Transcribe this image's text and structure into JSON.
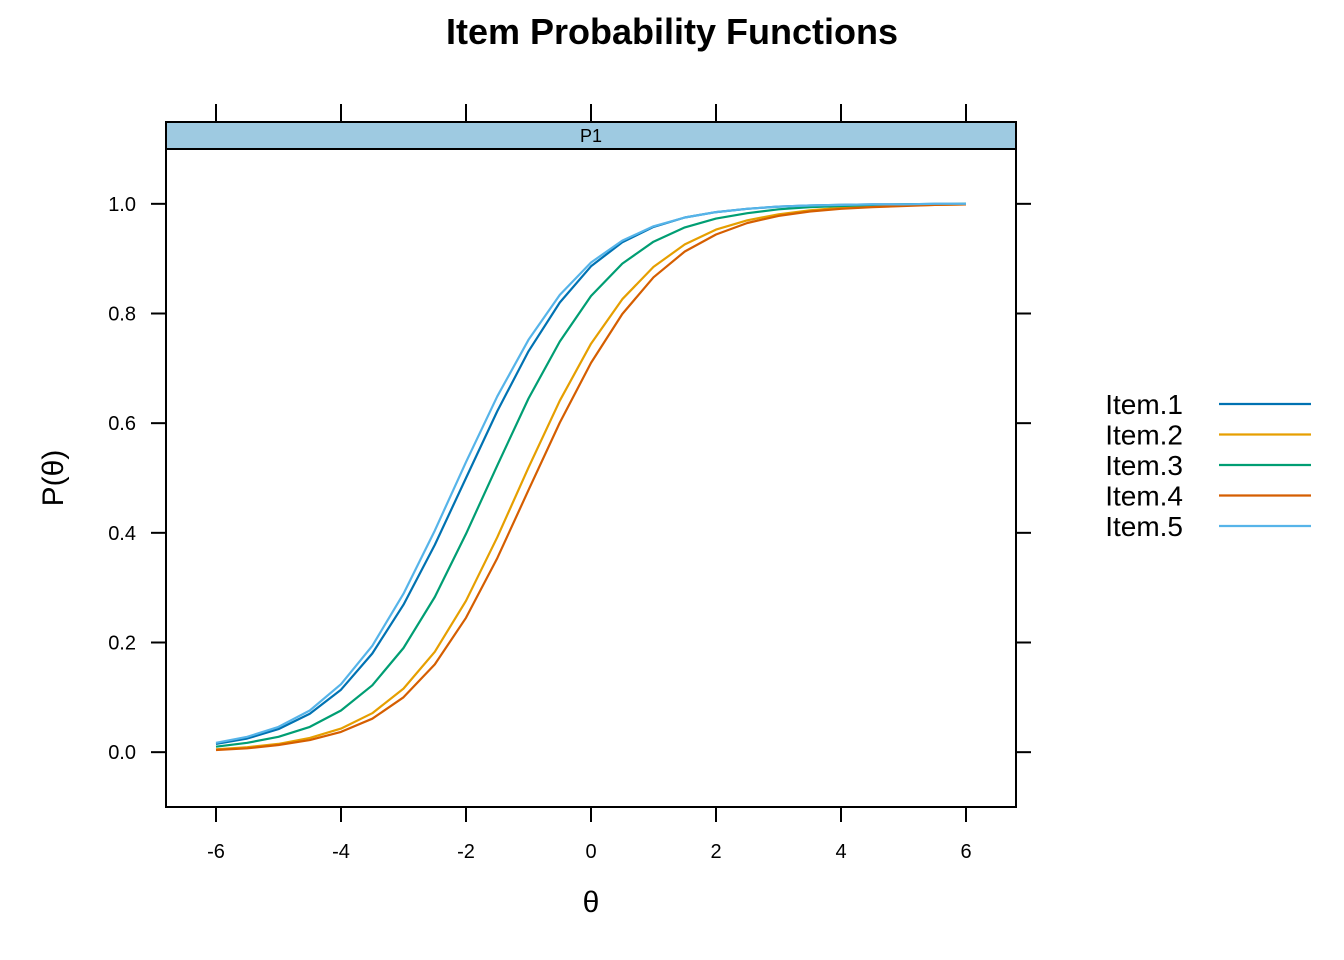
{
  "chart_data": {
    "type": "line",
    "title": "Item Probability Functions",
    "xlabel": "θ",
    "ylabel": "P(θ)",
    "panel": "P1",
    "xlim": [
      -6.8,
      6.8
    ],
    "ylim": [
      -0.1,
      1.1
    ],
    "xticks": [
      -6,
      -4,
      -2,
      0,
      2,
      4,
      6
    ],
    "yticks": [
      0.0,
      0.2,
      0.4,
      0.6,
      0.8,
      1.0
    ],
    "ytick_labels": [
      "0.0",
      "0.2",
      "0.4",
      "0.6",
      "0.8",
      "1.0"
    ],
    "legend_position": "right",
    "x": [
      -6,
      -5.5,
      -5,
      -4.5,
      -4,
      -3.5,
      -3,
      -2.5,
      -2,
      -1.5,
      -1,
      -0.5,
      0,
      0.5,
      1,
      1.5,
      2,
      2.5,
      3,
      3.5,
      4,
      4.5,
      5,
      5.5,
      6
    ],
    "series": [
      {
        "name": "Item.1",
        "color": "#0072B2",
        "values": [
          0.015,
          0.025,
          0.042,
          0.07,
          0.114,
          0.18,
          0.269,
          0.378,
          0.5,
          0.622,
          0.731,
          0.82,
          0.886,
          0.93,
          0.958,
          0.975,
          0.985,
          0.991,
          0.995,
          0.997,
          0.998,
          0.999,
          0.999,
          1.0,
          1.0
        ]
      },
      {
        "name": "Item.2",
        "color": "#E69F00",
        "values": [
          0.005,
          0.009,
          0.015,
          0.026,
          0.043,
          0.071,
          0.116,
          0.183,
          0.276,
          0.392,
          0.519,
          0.641,
          0.745,
          0.826,
          0.885,
          0.926,
          0.953,
          0.97,
          0.981,
          0.988,
          0.993,
          0.995,
          0.997,
          0.998,
          0.999
        ]
      },
      {
        "name": "Item.3",
        "color": "#009E73",
        "values": [
          0.01,
          0.017,
          0.028,
          0.046,
          0.076,
          0.122,
          0.19,
          0.283,
          0.398,
          0.523,
          0.645,
          0.749,
          0.832,
          0.891,
          0.931,
          0.957,
          0.973,
          0.983,
          0.99,
          0.994,
          0.996,
          0.998,
          0.999,
          0.999,
          1.0
        ]
      },
      {
        "name": "Item.4",
        "color": "#D55E00",
        "values": [
          0.004,
          0.007,
          0.013,
          0.022,
          0.037,
          0.061,
          0.1,
          0.16,
          0.245,
          0.354,
          0.478,
          0.601,
          0.71,
          0.799,
          0.866,
          0.913,
          0.944,
          0.965,
          0.978,
          0.986,
          0.991,
          0.994,
          0.996,
          0.998,
          0.999
        ]
      },
      {
        "name": "Item.5",
        "color": "#56B4E9",
        "values": [
          0.017,
          0.028,
          0.046,
          0.076,
          0.124,
          0.194,
          0.289,
          0.404,
          0.529,
          0.649,
          0.752,
          0.834,
          0.893,
          0.933,
          0.959,
          0.975,
          0.985,
          0.991,
          0.995,
          0.997,
          0.998,
          0.999,
          0.999,
          1.0,
          1.0
        ]
      }
    ]
  }
}
